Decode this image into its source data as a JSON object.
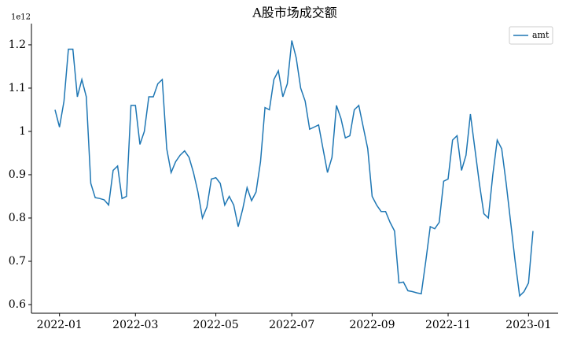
{
  "chart_data": {
    "type": "line",
    "title": "A股市场成交额",
    "y_offset_label": "1e12",
    "categories": [
      null,
      "2022-01",
      null,
      null,
      null,
      null,
      null,
      null,
      null,
      null,
      null,
      null,
      null,
      null,
      null,
      null,
      null,
      null,
      "2022-03",
      null,
      null,
      null,
      null,
      null,
      null,
      null,
      null,
      null,
      null,
      null,
      null,
      null,
      null,
      null,
      null,
      null,
      "2022-05",
      null,
      null,
      null,
      null,
      null,
      null,
      null,
      null,
      null,
      null,
      null,
      null,
      null,
      null,
      null,
      null,
      "2022-07",
      null,
      null,
      null,
      null,
      null,
      null,
      null,
      null,
      null,
      null,
      null,
      null,
      null,
      null,
      null,
      null,
      null,
      "2022-09",
      null,
      null,
      null,
      null,
      null,
      null,
      null,
      null,
      null,
      null,
      null,
      null,
      null,
      null,
      null,
      null,
      "2022-11",
      null,
      null,
      null,
      null,
      null,
      null,
      null,
      null,
      null,
      null,
      null,
      null,
      null,
      null,
      null,
      null,
      null,
      "2023-01",
      null
    ],
    "series": [
      {
        "name": "amt",
        "color": "#1f77b4",
        "values": [
          1.05,
          1.01,
          1.07,
          1.19,
          1.19,
          1.08,
          1.12,
          1.08,
          0.88,
          0.847,
          0.845,
          0.842,
          0.83,
          0.91,
          0.92,
          0.845,
          0.85,
          1.06,
          1.06,
          0.97,
          1.0,
          1.08,
          1.08,
          1.11,
          1.12,
          0.96,
          0.905,
          0.93,
          0.945,
          0.955,
          0.94,
          0.905,
          0.86,
          0.8,
          0.825,
          0.89,
          0.893,
          0.88,
          0.83,
          0.85,
          0.83,
          0.78,
          0.82,
          0.87,
          0.84,
          0.86,
          0.93,
          1.055,
          1.05,
          1.12,
          1.14,
          1.08,
          1.11,
          1.21,
          1.17,
          1.1,
          1.07,
          1.005,
          1.01,
          1.015,
          0.96,
          0.905,
          0.94,
          1.06,
          1.03,
          0.985,
          0.99,
          1.05,
          1.06,
          1.01,
          0.96,
          0.85,
          0.83,
          0.815,
          0.815,
          0.79,
          0.77,
          0.65,
          0.652,
          0.632,
          0.63,
          0.627,
          0.625,
          0.7,
          0.78,
          0.775,
          0.79,
          0.885,
          0.89,
          0.98,
          0.99,
          0.91,
          0.945,
          1.04,
          0.96,
          0.88,
          0.81,
          0.8,
          0.9,
          0.98,
          0.96,
          0.88,
          0.79,
          0.7,
          0.62,
          0.63,
          0.65,
          0.77
        ]
      }
    ],
    "ylim": [
      0.58,
      1.249
    ],
    "yticks": [
      0.6,
      0.7,
      0.8,
      0.9,
      1.0,
      1.1,
      1.2
    ],
    "legend": "upper right"
  }
}
